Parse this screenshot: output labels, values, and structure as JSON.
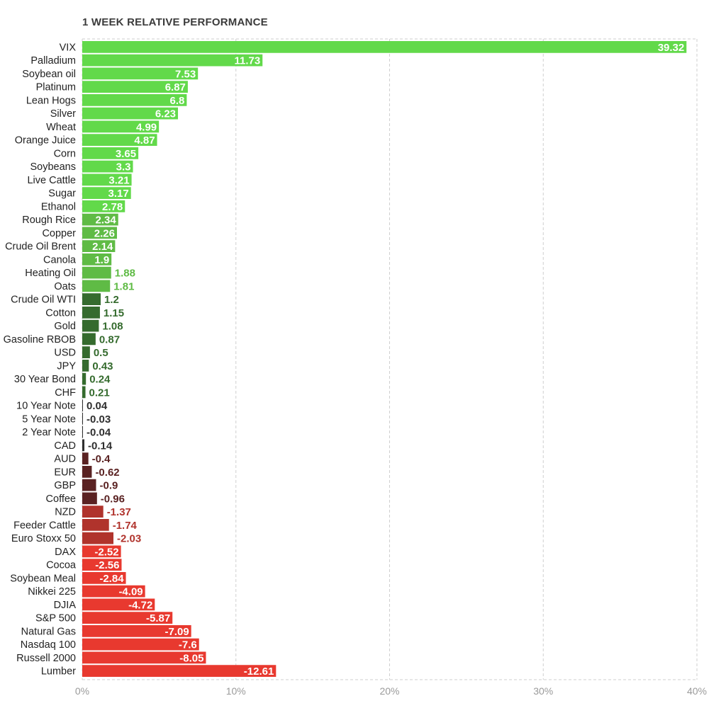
{
  "chart_data": {
    "type": "bar",
    "orientation": "horizontal",
    "title": "1 WEEK RELATIVE PERFORMANCE",
    "x_ticks": [
      "0%",
      "10%",
      "20%",
      "30%",
      "40%"
    ],
    "xlim": [
      0,
      40
    ],
    "grid": true,
    "categories": [
      "VIX",
      "Palladium",
      "Soybean oil",
      "Platinum",
      "Lean Hogs",
      "Silver",
      "Wheat",
      "Orange Juice",
      "Corn",
      "Soybeans",
      "Live Cattle",
      "Sugar",
      "Ethanol",
      "Rough Rice",
      "Copper",
      "Crude Oil Brent",
      "Canola",
      "Heating Oil",
      "Oats",
      "Crude Oil WTI",
      "Cotton",
      "Gold",
      "Gasoline RBOB",
      "USD",
      "JPY",
      "30 Year Bond",
      "CHF",
      "10 Year Note",
      "5 Year Note",
      "2 Year Note",
      "CAD",
      "AUD",
      "EUR",
      "GBP",
      "Coffee",
      "NZD",
      "Feeder Cattle",
      "Euro Stoxx 50",
      "DAX",
      "Cocoa",
      "Soybean Meal",
      "Nikkei 225",
      "DJIA",
      "S&P 500",
      "Natural Gas",
      "Nasdaq 100",
      "Russell 2000",
      "Lumber"
    ],
    "values": [
      39.32,
      11.73,
      7.53,
      6.87,
      6.8,
      6.23,
      4.99,
      4.87,
      3.65,
      3.3,
      3.21,
      3.17,
      2.78,
      2.34,
      2.26,
      2.14,
      1.9,
      1.88,
      1.81,
      1.2,
      1.15,
      1.08,
      0.87,
      0.5,
      0.43,
      0.24,
      0.21,
      0.04,
      -0.03,
      -0.04,
      -0.14,
      -0.4,
      -0.62,
      -0.9,
      -0.96,
      -1.37,
      -1.74,
      -2.03,
      -2.52,
      -2.56,
      -2.84,
      -4.09,
      -4.72,
      -5.87,
      -7.09,
      -7.6,
      -8.05,
      -12.61
    ],
    "value_labels": [
      "39.32",
      "11.73",
      "7.53",
      "6.87",
      "6.8",
      "6.23",
      "4.99",
      "4.87",
      "3.65",
      "3.3",
      "3.21",
      "3.17",
      "2.78",
      "2.34",
      "2.26",
      "2.14",
      "1.9",
      "1.88",
      "1.81",
      "1.2",
      "1.15",
      "1.08",
      "0.87",
      "0.5",
      "0.43",
      "0.24",
      "0.21",
      "0.04",
      "-0.03",
      "-0.04",
      "-0.14",
      "-0.4",
      "-0.62",
      "-0.9",
      "-0.96",
      "-1.37",
      "-1.74",
      "-2.03",
      "-2.52",
      "-2.56",
      "-2.84",
      "-4.09",
      "-4.72",
      "-5.87",
      "-7.09",
      "-7.6",
      "-8.05",
      "-12.61"
    ],
    "bar_magnitude": "absolute value",
    "colors": {
      "positive_strong": "#62d94a",
      "positive_mid": "#5fbb45",
      "positive_weak": "#356b2e",
      "neutral": "#2f2f2f",
      "negative_weak": "#5a2222",
      "negative_mid": "#b0332c",
      "negative_strong": "#e8392f",
      "grid": "#cfcfcf",
      "tick_text": "#9a9a9a"
    }
  }
}
